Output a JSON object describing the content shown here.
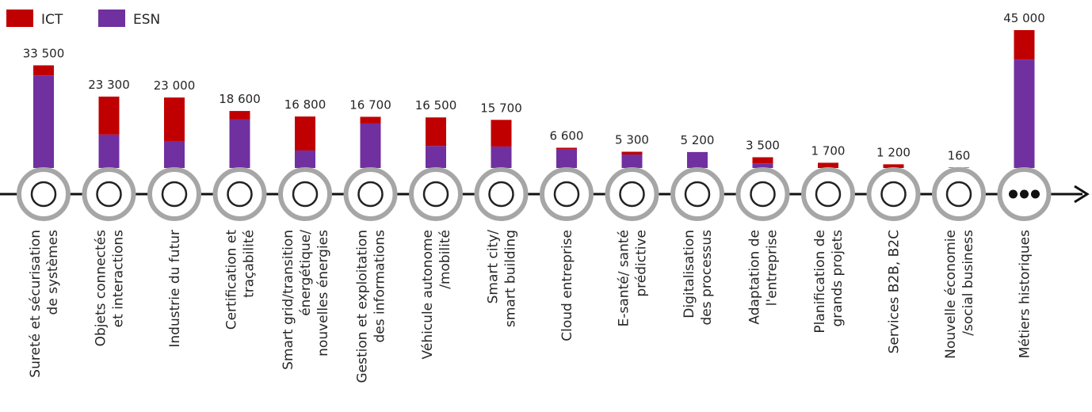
{
  "chart_data": {
    "type": "bar",
    "stacked": true,
    "categories": [
      [
        "Sureté et sécurisation",
        "de systèmes"
      ],
      [
        "Objets connectés",
        "et interactions"
      ],
      [
        "Industrie du futur"
      ],
      [
        "Certification et",
        "traçabilité"
      ],
      [
        "Smart grid/transition",
        "énergétique/",
        "nouvelles énergies"
      ],
      [
        "Gestion et exploitation",
        "des informations"
      ],
      [
        "Véhicule autonome",
        "/mobilité"
      ],
      [
        "Smart city/",
        "smart building"
      ],
      [
        "Cloud entreprise"
      ],
      [
        "E-santé/ santé",
        "prédictive"
      ],
      [
        "Digitalisation",
        "des processus"
      ],
      [
        "Adaptation de",
        "l'entreprise"
      ],
      [
        "Planification de",
        "grands projets"
      ],
      [
        "Services B2B,  B2C"
      ],
      [
        "Nouvelle économie",
        "/social business"
      ],
      [
        "Métiers historiques"
      ]
    ],
    "series": [
      {
        "name": "ICT",
        "color": "#c00000",
        "values": [
          3300,
          12400,
          14200,
          2800,
          11100,
          2200,
          9300,
          8700,
          400,
          900,
          0,
          2000,
          1700,
          1200,
          0,
          9600
        ]
      },
      {
        "name": "ESN",
        "color": "#7030a0",
        "values": [
          30200,
          10900,
          8800,
          15800,
          5700,
          14500,
          7200,
          7000,
          6200,
          4400,
          5200,
          1500,
          0,
          0,
          160,
          35400
        ]
      }
    ],
    "totals": [
      33500,
      23300,
      23000,
      18600,
      16800,
      16700,
      16500,
      15700,
      6600,
      5300,
      5200,
      3500,
      1700,
      1200,
      160,
      45000
    ],
    "total_labels": [
      "33 500",
      "23 300",
      "23 000",
      "18 600",
      "16 800",
      "16 700",
      "16 500",
      "15 700",
      "6 600",
      "5 300",
      "5 200",
      "3 500",
      "1 700",
      "1 200",
      "160",
      "45 000"
    ],
    "ylim": [
      0,
      45000
    ],
    "legend": "top-left"
  }
}
